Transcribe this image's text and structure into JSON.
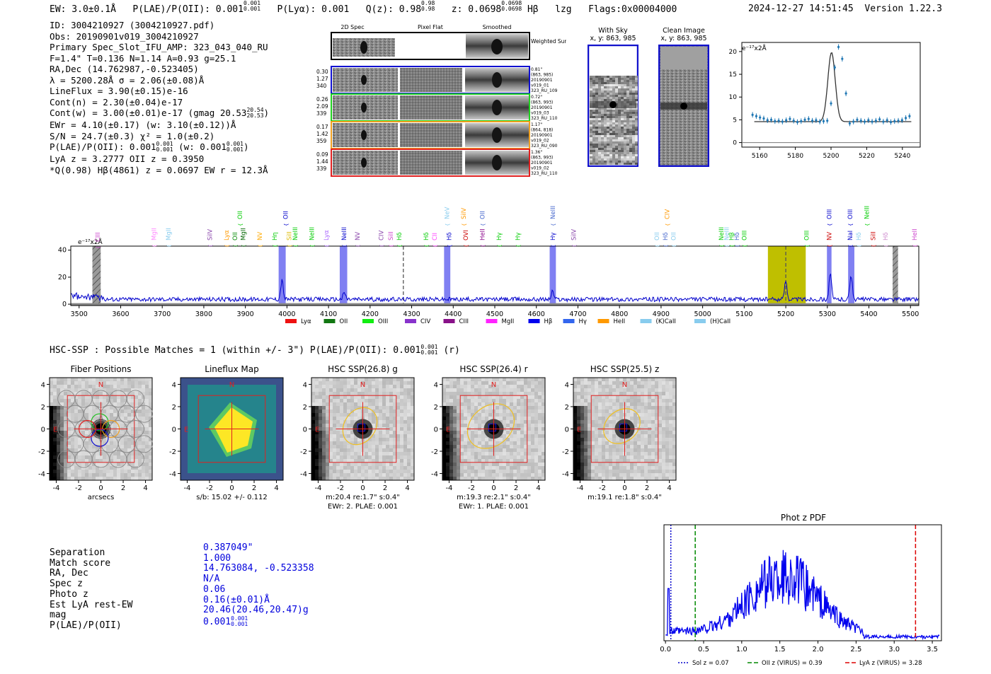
{
  "header": {
    "ew": "EW: 3.0±0.1Å",
    "plae": "P(LAE)/P(OII): 0.001",
    "plae_err": [
      "0.001",
      "0.001"
    ],
    "plya": "P(Lyα): 0.001",
    "qz": "Q(z): 0.98",
    "qz_err": [
      "0.98",
      "0.98"
    ],
    "z": "z: 0.0698",
    "z_err": [
      "0.0698",
      "0.0698"
    ],
    "line": "Hβ",
    "lzg": "lzg",
    "flags": "Flags:0x00004000",
    "datetime": "2024-12-27 14:51:45",
    "version": "Version 1.22.3"
  },
  "info": {
    "lines": [
      "ID: 3004210927 (3004210927.pdf)",
      "Obs: 20190901v019_3004210927",
      "Primary Spec_Slot_IFU_AMP: 323_043_040_RU",
      "F=1.4\"  T=0.136  N=1.14  A=0.93  g=25.1",
      "RA,Dec (14.762987,-0.523405)",
      "λ = 5200.28Å  σ = 2.06(±0.08)Å",
      "LineFlux = 3.90(±0.15)e-16",
      "Cont(n) = 2.30(±0.04)e-17",
      "Cont(w) = 3.00(±0.01)e-17 (gmag 20.53",
      "EWr = 4.10(±0.17) (w: 3.10(±0.12))Å",
      "S/N = 24.7(±0.3)  χ² = 1.0(±0.2)",
      "P(LAE)/P(OII): 0.001",
      "LyA z = 3.2777  OII z = 0.3950",
      "*Q(0.98) Hβ(4861) z = 0.0697  EW r = 12.3Å"
    ],
    "gmag_err": [
      "20.54",
      "20.53"
    ],
    "plae_err": [
      "0.001",
      "0.001"
    ],
    "plae_w": "(w: 0.001",
    "plae_w_err": [
      "0.001",
      "0.001"
    ]
  },
  "cutouts": {
    "col_titles": [
      "2D Spec",
      "Pixel Flat",
      "Smoothed"
    ],
    "weighted_label": "Weighted Sum",
    "rows": [
      {
        "left": [
          "0.30",
          "1.27",
          "340"
        ],
        "right": [
          "0.81\"",
          "(863, 985)",
          "20190901",
          "v019_01",
          "323_RU_109"
        ],
        "color": "#1010d0"
      },
      {
        "left": [
          "0.26",
          "2.09",
          "339"
        ],
        "right": [
          "0.72\"",
          "(863, 993)",
          "20190901",
          "v019_03",
          "323_RU_110"
        ],
        "color": "#20d020"
      },
      {
        "left": [
          "0.17",
          "1.42",
          "359"
        ],
        "right": [
          "1.17\"",
          "(864, 818)",
          "20190901",
          "v019_02",
          "323_RU_090"
        ],
        "color": "#f0a020"
      },
      {
        "left": [
          "0.09",
          "1.44",
          "339"
        ],
        "right": [
          "1.36\"",
          "(863, 993)",
          "20190901",
          "v019_02",
          "323_RU_110"
        ],
        "color": "#e02020"
      }
    ]
  },
  "sky": {
    "with_sky_title": "With Sky",
    "with_sky_xy": "x, y: 863, 985",
    "clean_title": "Clean Image",
    "clean_xy": "x, y: 863, 985"
  },
  "zoom_chart": {
    "type": "line",
    "unit_label": "e⁻¹⁷x2Å",
    "xlim": [
      5150,
      5250
    ],
    "ylim": [
      -1,
      22
    ],
    "xticks": [
      5160,
      5180,
      5200,
      5220,
      5240
    ],
    "yticks": [
      0,
      5,
      10,
      15,
      20
    ],
    "gauss": {
      "center": 5200.28,
      "sigma": 2.06,
      "amp": 15.2,
      "base": 4.6
    },
    "points_y": [
      6.1,
      5.8,
      5.5,
      5.3,
      4.9,
      5.0,
      4.7,
      4.8,
      4.6,
      4.9,
      5.2,
      4.8,
      4.5,
      4.7,
      5.0,
      5.2,
      4.8,
      4.9,
      4.6,
      4.7,
      4.8,
      8.6,
      16.5,
      21.0,
      18.4,
      10.8,
      4.2,
      4.6,
      5.0,
      4.8,
      4.6,
      4.9,
      4.6,
      4.8,
      5.1,
      4.6,
      4.9,
      4.5,
      4.7,
      4.8,
      4.9,
      5.4,
      5.8
    ]
  },
  "spectrum": {
    "type": "line",
    "unit_label": "e⁻¹⁷x2Å",
    "xlim": [
      3480,
      5520
    ],
    "ylim": [
      -1,
      43
    ],
    "xticks": [
      3500,
      3600,
      3700,
      3800,
      3900,
      4000,
      4100,
      4200,
      4300,
      4400,
      4500,
      4600,
      4700,
      4800,
      4900,
      5000,
      5100,
      5200,
      5300,
      5400,
      5500
    ],
    "yticks": [
      0,
      20,
      40
    ],
    "peaks": [
      {
        "x": 3988,
        "h": 14
      },
      {
        "x": 4138,
        "h": 5
      },
      {
        "x": 4639,
        "h": 6
      },
      {
        "x": 5200,
        "h": 14
      },
      {
        "x": 5307,
        "h": 19
      },
      {
        "x": 5357,
        "h": 18
      }
    ],
    "blue_bands": [
      [
        3980,
        3997
      ],
      [
        4127,
        4145
      ],
      [
        4378,
        4393
      ],
      [
        4632,
        4647
      ],
      [
        5299,
        5310
      ],
      [
        5350,
        5365
      ]
    ],
    "yellow_band": [
      5157,
      5248
    ],
    "hatched": [
      [
        3532,
        3552
      ],
      [
        5457,
        5470
      ]
    ],
    "dashed": [
      4280,
      5200
    ],
    "line_labels": [
      {
        "t": "CIII",
        "x": 3545,
        "row": 2,
        "c": "#cc44cc"
      },
      {
        "t": "MgII",
        "x": 3680,
        "row": 1,
        "c": "#ff88ff"
      },
      {
        "t": "MgII",
        "x": 3715,
        "row": 1,
        "c": "#88ccee"
      },
      {
        "t": "SiIV",
        "x": 3815,
        "row": 1,
        "c": "#8844aa"
      },
      {
        "t": "Lyα",
        "x": 3855,
        "row": 1,
        "c": "#ff9900"
      },
      {
        "t": "OII",
        "x": 3875,
        "row": 1,
        "c": "#008800"
      },
      {
        "t": "OII",
        "x": 3887,
        "row": 0,
        "c": "#00cc00"
      },
      {
        "t": "MgII",
        "x": 3895,
        "row": 1,
        "c": "#006600"
      },
      {
        "t": "NV",
        "x": 3935,
        "row": 1,
        "c": "#ffaa00"
      },
      {
        "t": "OII",
        "x": 3997,
        "row": 0,
        "c": "#0000cc"
      },
      {
        "t": "Hη",
        "x": 3970,
        "row": 1,
        "c": "#00cc00"
      },
      {
        "t": "SiII",
        "x": 4005,
        "row": 1,
        "c": "#ddbb00"
      },
      {
        "t": "NeIII",
        "x": 4020,
        "row": 1,
        "c": "#00cc00"
      },
      {
        "t": "NeIII",
        "x": 4060,
        "row": 1,
        "c": "#00cc00"
      },
      {
        "t": "Lyα",
        "x": 4095,
        "row": 1,
        "c": "#aa66ff"
      },
      {
        "t": "NeIII",
        "x": 4137,
        "row": 1,
        "c": "#0000cc"
      },
      {
        "t": "NV",
        "x": 4170,
        "row": 1,
        "c": "#8844aa"
      },
      {
        "t": "CIV",
        "x": 4227,
        "row": 1,
        "c": "#8844aa"
      },
      {
        "t": "SiII",
        "x": 4250,
        "row": 1,
        "c": "#cc44cc"
      },
      {
        "t": "Hδ",
        "x": 4270,
        "row": 1,
        "c": "#00cc00"
      },
      {
        "t": "Hδ",
        "x": 4335,
        "row": 1,
        "c": "#00cc00"
      },
      {
        "t": "CII",
        "x": 4355,
        "row": 1,
        "c": "#ff44ff"
      },
      {
        "t": "NeV",
        "x": 4385,
        "row": 0,
        "c": "#88ccee"
      },
      {
        "t": "Hδ",
        "x": 4390,
        "row": 1,
        "c": "#0000cc"
      },
      {
        "t": "SiIV",
        "x": 4425,
        "row": 0,
        "c": "#ff9900"
      },
      {
        "t": "OVI",
        "x": 4430,
        "row": 1,
        "c": "#cc0000"
      },
      {
        "t": "OII",
        "x": 4470,
        "row": 0,
        "c": "#4466cc"
      },
      {
        "t": "HeII",
        "x": 4470,
        "row": 1,
        "c": "#880088"
      },
      {
        "t": "Hγ",
        "x": 4510,
        "row": 1,
        "c": "#00cc00"
      },
      {
        "t": "Hγ",
        "x": 4555,
        "row": 1,
        "c": "#00cc00"
      },
      {
        "t": "NeIII",
        "x": 4640,
        "row": 0,
        "c": "#4466cc"
      },
      {
        "t": "Hγ",
        "x": 4640,
        "row": 1,
        "c": "#0000cc"
      },
      {
        "t": "SiIV",
        "x": 4690,
        "row": 1,
        "c": "#8844aa"
      },
      {
        "t": "CIV",
        "x": 4915,
        "row": 0,
        "c": "#ff9900"
      },
      {
        "t": "OII",
        "x": 4890,
        "row": 1,
        "c": "#88ccee"
      },
      {
        "t": "Hδ",
        "x": 4910,
        "row": 1,
        "c": "#4466cc"
      },
      {
        "t": "OII",
        "x": 4930,
        "row": 1,
        "c": "#88ccee"
      },
      {
        "t": "NeIII",
        "x": 5045,
        "row": 1,
        "c": "#00cc00"
      },
      {
        "t": "NeIII",
        "x": 5058,
        "row": 1,
        "c": "#88ccee"
      },
      {
        "t": "Hβ",
        "x": 5070,
        "row": 1,
        "c": "#00cc00"
      },
      {
        "t": "Hδ",
        "x": 5082,
        "row": 1,
        "c": "#4466cc"
      },
      {
        "t": "OIII",
        "x": 5100,
        "row": 1,
        "c": "#00cc00"
      },
      {
        "t": "OIII",
        "x": 5250,
        "row": 1,
        "c": "#00cc00"
      },
      {
        "t": "OIII",
        "x": 5305,
        "row": 0,
        "c": "#0000cc"
      },
      {
        "t": "NV",
        "x": 5305,
        "row": 1,
        "c": "#cc0000"
      },
      {
        "t": "OIII",
        "x": 5355,
        "row": 0,
        "c": "#0000cc"
      },
      {
        "t": "NeIII",
        "x": 5395,
        "row": 0,
        "c": "#00cc00"
      },
      {
        "t": "NaI",
        "x": 5355,
        "row": 1,
        "c": "#0000cc"
      },
      {
        "t": "Hδ",
        "x": 5375,
        "row": 1,
        "c": "#88ccee"
      },
      {
        "t": "SiII",
        "x": 5410,
        "row": 1,
        "c": "#cc0000"
      },
      {
        "t": "Hδ",
        "x": 5440,
        "row": 1,
        "c": "#cc88cc"
      },
      {
        "t": "HeII",
        "x": 5510,
        "row": 1,
        "c": "#cc44cc"
      }
    ],
    "legend": [
      {
        "label": "Lyα",
        "c": "#ee1111"
      },
      {
        "label": "OII",
        "c": "#117711"
      },
      {
        "label": "OIII",
        "c": "#11ee11"
      },
      {
        "label": "CIV",
        "c": "#8833cc"
      },
      {
        "label": "CIII",
        "c": "#881188"
      },
      {
        "label": "MgII",
        "c": "#ff22ff"
      },
      {
        "label": "Hβ",
        "c": "#0000ee"
      },
      {
        "label": "Hγ",
        "c": "#3366ee"
      },
      {
        "label": "HeII",
        "c": "#ff9900"
      },
      {
        "label": "(K)CaII",
        "c": "#88ccee"
      },
      {
        "label": "(H)CaII",
        "c": "#88ccee"
      }
    ]
  },
  "hsc": {
    "title": "HSC-SSP : Possible Matches = 1 (within +/- 3\")  P(LAE)/P(OII): 0.001",
    "plae_err": [
      "0.001",
      "0.001"
    ],
    "band_suffix": "(r)"
  },
  "stamps": [
    {
      "title": "Fiber Positions",
      "n": "N",
      "e": "E",
      "cap1": "arcsecs",
      "cap2": ""
    },
    {
      "title": "Lineflux Map",
      "n": "N",
      "e": "E",
      "cap1": "s/b: 15.02 +/- 0.112",
      "cap2": ""
    },
    {
      "title": "HSC SSP(26.8) g",
      "n": "N",
      "e": "E",
      "cap1": "m:20.4  re:1.7\"  s:0.4\"",
      "cap2": "EWr: 2. PLAE: 0.001"
    },
    {
      "title": "HSC SSP(26.4) r",
      "n": "N",
      "e": "E",
      "cap1": "m:19.3  re:2.1\"  s:0.4\"",
      "cap2": "EWr: 1. PLAE: 0.001"
    },
    {
      "title": "HSC SSP(25.5) z",
      "n": "N",
      "e": "E",
      "cap1": "m:19.1  re:1.8\"  s:0.4\"",
      "cap2": ""
    }
  ],
  "stamp_axes": {
    "ticks": [
      -4,
      -2,
      0,
      2,
      4
    ],
    "lim": [
      -4.6,
      4.6
    ]
  },
  "match_table": {
    "labels": [
      "Separation",
      "Match score",
      "RA, Dec",
      "Spec z",
      "Photo z",
      "Est LyA rest-EW",
      "mag",
      "P(LAE)/P(OII)"
    ],
    "values": [
      "0.387049\"",
      "1.000",
      "14.763084, -0.523358",
      "N/A",
      "0.06",
      "0.16(±0.01)Å",
      "20.46(20.46,20.47)g",
      "0.001"
    ],
    "plae_err": [
      "0.001",
      "0.001"
    ]
  },
  "pdf_chart": {
    "type": "line",
    "title": "Phot z PDF",
    "xlim": [
      -0.02,
      3.62
    ],
    "ylim": [
      0,
      1
    ],
    "xticks": [
      0.0,
      0.5,
      1.0,
      1.5,
      2.0,
      2.5,
      3.0,
      3.5
    ],
    "markers": [
      {
        "x": 0.07,
        "c": "#0000cc",
        "dash": "2,2",
        "label": "Sol z = 0.07"
      },
      {
        "x": 0.39,
        "c": "#008800",
        "dash": "6,3",
        "label": "OII z (VIRUS) = 0.39"
      },
      {
        "x": 3.28,
        "c": "#dd0000",
        "dash": "6,3",
        "label": "LyA z (VIRUS) = 3.28"
      }
    ]
  }
}
